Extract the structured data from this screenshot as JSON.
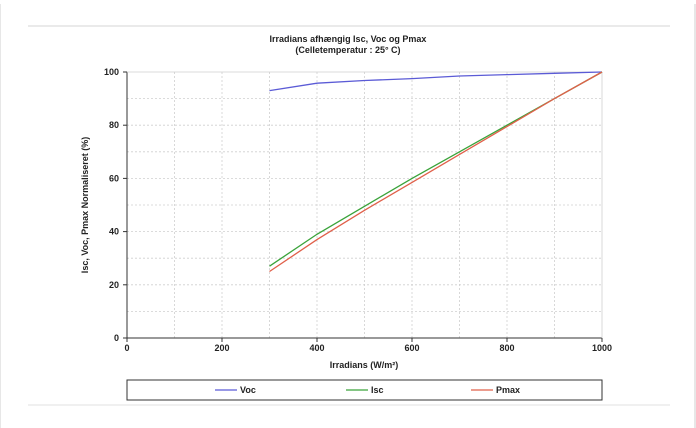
{
  "chart_data": {
    "type": "line",
    "title": "Irradians afhængig Isc, Voc og Pmax",
    "subtitle": "(Celletemperatur : 25° C)",
    "xlabel": "Irradians (W/m²)",
    "ylabel": "Isc, Voc, Pmax Normaliseret (%)",
    "xlim": [
      0,
      1000
    ],
    "ylim": [
      0,
      100
    ],
    "x_ticks": [
      "0",
      "200",
      "400",
      "600",
      "800",
      "1000"
    ],
    "y_ticks": [
      "0",
      "20",
      "40",
      "60",
      "80",
      "100"
    ],
    "grid": true,
    "legend_position": "bottom",
    "series": [
      {
        "name": "Voc",
        "color": "#5b5bd6",
        "points": [
          [
            300,
            93
          ],
          [
            400,
            95.8
          ],
          [
            500,
            96.8
          ],
          [
            600,
            97.5
          ],
          [
            700,
            98.5
          ],
          [
            800,
            99
          ],
          [
            900,
            99.5
          ],
          [
            1000,
            100
          ]
        ]
      },
      {
        "name": "Isc",
        "color": "#3aa33a",
        "points": [
          [
            300,
            27
          ],
          [
            400,
            39
          ],
          [
            500,
            49.5
          ],
          [
            600,
            60
          ],
          [
            700,
            70
          ],
          [
            800,
            80
          ],
          [
            900,
            90
          ],
          [
            1000,
            100
          ]
        ]
      },
      {
        "name": "Pmax",
        "color": "#e0604a",
        "points": [
          [
            300,
            25
          ],
          [
            400,
            37
          ],
          [
            500,
            48
          ],
          [
            600,
            58.5
          ],
          [
            700,
            69
          ],
          [
            800,
            79.5
          ],
          [
            900,
            90
          ],
          [
            1000,
            100
          ]
        ]
      }
    ]
  }
}
